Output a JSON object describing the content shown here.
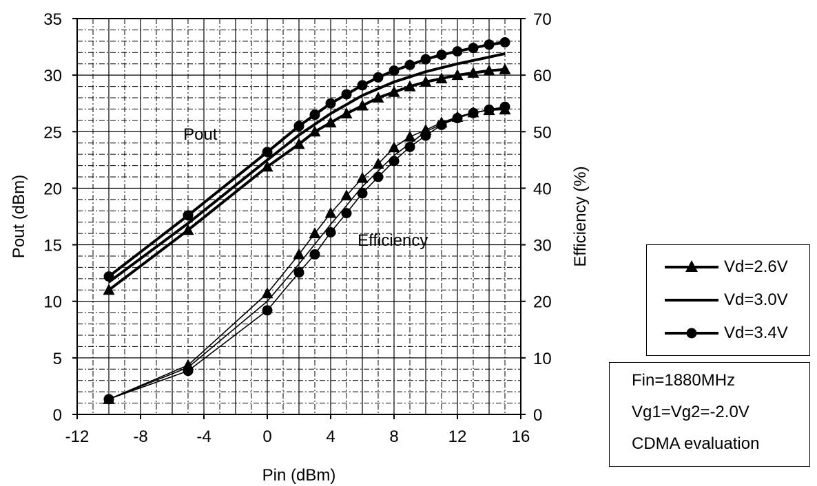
{
  "chart_data": {
    "type": "line",
    "xlabel": "Pin (dBm)",
    "ylabel_left": "Pout (dBm)",
    "ylabel_right": "Efficiency (%)",
    "xlim": [
      -12,
      16
    ],
    "ylim_left": [
      0,
      35
    ],
    "ylim_right": [
      0,
      70
    ],
    "x_ticks": [
      "-12",
      "-8",
      "-4",
      "0",
      "4",
      "8",
      "12",
      "16"
    ],
    "y_left_ticks": [
      "0",
      "5",
      "10",
      "15",
      "20",
      "25",
      "30",
      "35"
    ],
    "y_right_ticks": [
      "0",
      "10",
      "20",
      "30",
      "40",
      "50",
      "60",
      "70"
    ],
    "grid": true,
    "annotations": [
      "Pout",
      "Efficiency"
    ],
    "series": [
      {
        "name": "Vd=2.6V",
        "marker": "triangle",
        "metric": "Pout",
        "axis": "left",
        "x": [
          -10,
          -5,
          0,
          2,
          3,
          4,
          5,
          6,
          7,
          8,
          9,
          10,
          11,
          12,
          13,
          14,
          15
        ],
        "y": [
          11,
          16.3,
          21.9,
          23.9,
          25,
          25.8,
          26.6,
          27.3,
          28,
          28.5,
          29,
          29.4,
          29.7,
          30,
          30.2,
          30.4,
          30.5
        ]
      },
      {
        "name": "Vd=3.0V",
        "marker": "none",
        "metric": "Pout",
        "axis": "left",
        "x": [
          -10,
          -5,
          0,
          2,
          4,
          6,
          8,
          10,
          12,
          14,
          15
        ],
        "y": [
          11.7,
          16.9,
          22.5,
          24.7,
          26.6,
          28.2,
          29.4,
          30.3,
          31,
          31.6,
          31.9
        ]
      },
      {
        "name": "Vd=3.4V",
        "marker": "circle",
        "metric": "Pout",
        "axis": "left",
        "x": [
          -10,
          -5,
          0,
          2,
          3,
          4,
          5,
          6,
          7,
          8,
          9,
          10,
          11,
          12,
          13,
          14,
          15
        ],
        "y": [
          12.2,
          17.6,
          23.2,
          25.5,
          26.5,
          27.5,
          28.3,
          29.1,
          29.8,
          30.4,
          30.9,
          31.4,
          31.8,
          32.1,
          32.4,
          32.7,
          32.9
        ]
      },
      {
        "name": "Vd=2.6V",
        "marker": "triangle",
        "metric": "Efficiency",
        "axis": "right",
        "x": [
          -10,
          -5,
          0,
          2,
          3,
          4,
          5,
          6,
          7,
          8,
          9,
          10,
          11,
          12,
          13,
          14,
          15
        ],
        "y": [
          2.7,
          8.7,
          21.4,
          28.3,
          32,
          35.6,
          38.7,
          41.8,
          44.3,
          47.2,
          49.1,
          50.3,
          51.6,
          52.6,
          53.4,
          53.8,
          53.9
        ]
      },
      {
        "name": "Vd=3.0V",
        "marker": "none",
        "metric": "Efficiency",
        "axis": "right",
        "x": [
          -10,
          -5,
          0,
          2,
          4,
          6,
          8,
          10,
          12,
          14,
          15
        ],
        "y": [
          2.7,
          8.3,
          20,
          26.6,
          33.6,
          40.3,
          45.8,
          50,
          52.6,
          53.9,
          54.2
        ]
      },
      {
        "name": "Vd=3.4V",
        "marker": "circle",
        "metric": "Efficiency",
        "axis": "right",
        "x": [
          -10,
          -5,
          0,
          2,
          3,
          4,
          5,
          6,
          7,
          8,
          9,
          10,
          11,
          12,
          13,
          14,
          15
        ],
        "y": [
          2.7,
          7.7,
          18.4,
          25.1,
          28.3,
          32.2,
          35.6,
          39.1,
          42,
          44.8,
          47.3,
          49.3,
          51.2,
          52.4,
          53.3,
          53.9,
          54.4
        ]
      }
    ],
    "legend": {
      "placement": "right",
      "entries": [
        {
          "label": "Vd=2.6V",
          "marker": "triangle"
        },
        {
          "label": "Vd=3.0V",
          "marker": "none"
        },
        {
          "label": "Vd=3.4V",
          "marker": "circle"
        }
      ]
    },
    "conditions": [
      "Fin=1880MHz",
      "Vg1=Vg2=-2.0V",
      "CDMA evaluation"
    ]
  }
}
